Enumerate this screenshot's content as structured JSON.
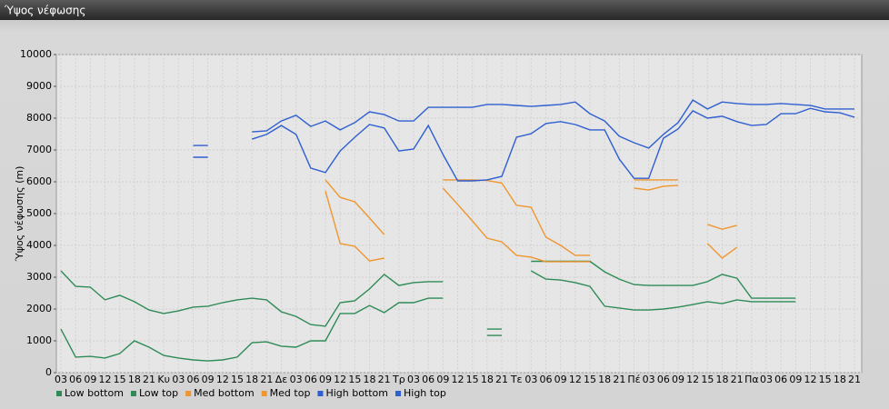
{
  "chart_data": {
    "type": "line",
    "title": "Ύψος νέφωσης",
    "y_label": "Ύψος νέφωσης (m)",
    "categories": [
      "03",
      "06",
      "09",
      "12",
      "15",
      "18",
      "21",
      "Κυ",
      "03",
      "06",
      "09",
      "12",
      "15",
      "18",
      "21",
      "Δε",
      "03",
      "06",
      "09",
      "12",
      "15",
      "18",
      "21",
      "Τρ",
      "03",
      "06",
      "09",
      "12",
      "15",
      "18",
      "21",
      "Τε",
      "03",
      "06",
      "09",
      "12",
      "15",
      "18",
      "21",
      "Πέ",
      "03",
      "06",
      "09",
      "12",
      "15",
      "18",
      "21",
      "Πα",
      "03",
      "06",
      "09",
      "12",
      "15",
      "18",
      "21"
    ],
    "series": [
      {
        "name": "Low bottom",
        "color": "#2e8b57",
        "values": [
          1370,
          490,
          510,
          460,
          600,
          1000,
          800,
          540,
          460,
          400,
          370,
          400,
          490,
          940,
          970,
          830,
          800,
          1000,
          1000,
          1860,
          1860,
          2110,
          1890,
          2200,
          2200,
          2340,
          2340,
          null,
          null,
          1170,
          1170,
          null,
          3200,
          2940,
          2910,
          2830,
          2710,
          2090,
          2030,
          1970,
          1970,
          2000,
          2060,
          2140,
          2230,
          2170,
          2290,
          2230,
          2230,
          2230,
          2230,
          null,
          null,
          null,
          null
        ]
      },
      {
        "name": "Low top",
        "color": "#2e8b57",
        "values": [
          3200,
          2710,
          2690,
          2290,
          2430,
          2230,
          1970,
          1860,
          1940,
          2060,
          2090,
          2200,
          2290,
          2340,
          2290,
          1910,
          1770,
          1510,
          1460,
          2200,
          2260,
          2630,
          3090,
          2740,
          2830,
          2860,
          2860,
          null,
          null,
          1370,
          1370,
          null,
          3500,
          3500,
          3500,
          3500,
          3500,
          3170,
          2940,
          2770,
          2740,
          2740,
          2740,
          2740,
          2860,
          3090,
          2970,
          2340,
          2340,
          2340,
          2340,
          null,
          null,
          null,
          null
        ]
      },
      {
        "name": "Med bottom",
        "color": "#f0962e",
        "values": [
          null,
          null,
          null,
          null,
          null,
          null,
          null,
          null,
          null,
          null,
          null,
          null,
          null,
          null,
          null,
          null,
          null,
          null,
          5710,
          4060,
          3970,
          3510,
          3600,
          null,
          null,
          null,
          5800,
          5290,
          4770,
          4230,
          4110,
          3690,
          3630,
          3490,
          3490,
          3490,
          3490,
          null,
          null,
          5800,
          5740,
          5860,
          5890,
          null,
          4060,
          3600,
          3940,
          null,
          null,
          null,
          null,
          null,
          null,
          null,
          null
        ]
      },
      {
        "name": "Med top",
        "color": "#f0962e",
        "values": [
          null,
          null,
          null,
          null,
          null,
          null,
          null,
          null,
          null,
          null,
          null,
          null,
          null,
          null,
          null,
          null,
          null,
          null,
          6060,
          5510,
          5370,
          4860,
          4340,
          null,
          null,
          null,
          6060,
          6060,
          6060,
          6040,
          5960,
          5260,
          5200,
          4260,
          4000,
          3690,
          3690,
          null,
          null,
          6060,
          6060,
          6060,
          6060,
          null,
          4660,
          4510,
          4630,
          null,
          null,
          null,
          null,
          null,
          null,
          null,
          null
        ]
      },
      {
        "name": "High bottom",
        "color": "#2f5fd0",
        "values": [
          null,
          null,
          null,
          null,
          null,
          null,
          null,
          null,
          null,
          6770,
          6770,
          null,
          null,
          7340,
          7490,
          7770,
          7490,
          6430,
          6290,
          6970,
          7400,
          7800,
          7690,
          6970,
          7030,
          7770,
          6860,
          6030,
          6030,
          6060,
          6170,
          7400,
          7510,
          7830,
          7890,
          7800,
          7630,
          7630,
          6710,
          6110,
          6110,
          7370,
          7660,
          8230,
          8000,
          8060,
          7890,
          7770,
          7800,
          8140,
          8140,
          8310,
          8200,
          8170,
          8030
        ]
      },
      {
        "name": "High top",
        "color": "#2f5fd0",
        "values": [
          null,
          null,
          null,
          null,
          null,
          null,
          null,
          null,
          null,
          7140,
          7140,
          null,
          null,
          7570,
          7600,
          7910,
          8090,
          7740,
          7910,
          7630,
          7860,
          8200,
          8110,
          7910,
          7910,
          8340,
          8340,
          8340,
          8340,
          8430,
          8430,
          8400,
          8370,
          8400,
          8430,
          8510,
          8140,
          7910,
          7430,
          7230,
          7060,
          7490,
          7860,
          8570,
          8290,
          8510,
          8460,
          8430,
          8430,
          8460,
          8430,
          8400,
          8290,
          8290,
          8290
        ]
      }
    ],
    "ylim": [
      0,
      10000
    ],
    "yticks": [
      0,
      1000,
      2000,
      3000,
      4000,
      5000,
      6000,
      7000,
      8000,
      9000,
      10000
    ],
    "grid": true
  }
}
